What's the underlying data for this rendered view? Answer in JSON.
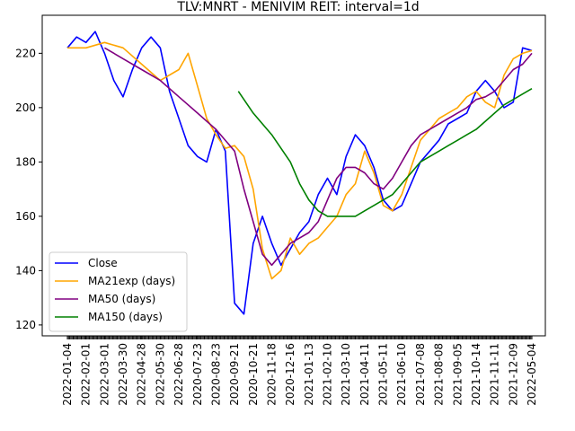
{
  "chart_data": {
    "type": "line",
    "title": "TLV:MNRT - MENIVIM REIT: interval=1d",
    "xlabel": "",
    "ylabel": "",
    "ylim": [
      116,
      234
    ],
    "y_ticks": [
      120,
      140,
      160,
      180,
      200,
      220
    ],
    "x_tick_labels": [
      "2022-01-04",
      "2022-02-01",
      "2022-03-01",
      "2022-03-30",
      "2022-04-28",
      "2022-05-30",
      "2022-06-28",
      "2020-07-23",
      "2020-08-23",
      "2020-09-21",
      "2020-10-21",
      "2020-11-18",
      "2020-12-16",
      "2021-01-13",
      "2021-02-10",
      "2021-03-10",
      "2021-04-11",
      "2021-05-11",
      "2021-06-10",
      "2021-07-08",
      "2021-08-08",
      "2021-09-05",
      "2021-10-14",
      "2021-11-11",
      "2021-12-09",
      "2022-05-04"
    ],
    "x_count": 26,
    "grid": false,
    "legend_position": "lower-left",
    "series": [
      {
        "name": "Close",
        "color": "#0000ff",
        "x": [
          0,
          0.5,
          1,
          1.5,
          2,
          2.5,
          3,
          3.5,
          4,
          4.5,
          5,
          5.5,
          6,
          6.5,
          7,
          7.5,
          8,
          8.5,
          9,
          9.5,
          10,
          10.5,
          11,
          11.5,
          12,
          12.5,
          13,
          13.5,
          14,
          14.5,
          15,
          15.5,
          16,
          16.5,
          17,
          17.5,
          18,
          18.5,
          19,
          19.5,
          20,
          20.5,
          21,
          21.5,
          22,
          22.5,
          23,
          23.5,
          24,
          24.5,
          25
        ],
        "values": [
          222,
          226,
          224,
          228,
          220,
          210,
          204,
          214,
          222,
          226,
          222,
          206,
          196,
          186,
          182,
          180,
          192,
          184,
          128,
          124,
          150,
          160,
          150,
          142,
          148,
          154,
          158,
          168,
          174,
          168,
          182,
          190,
          186,
          178,
          166,
          162,
          164,
          172,
          180,
          184,
          188,
          194,
          196,
          198,
          206,
          210,
          206,
          200,
          202,
          222,
          221
        ]
      },
      {
        "name": "MA21exp (days)",
        "color": "#ffa500",
        "x": [
          0,
          1,
          2,
          3,
          4,
          5,
          6,
          6.5,
          7,
          7.5,
          8,
          8.5,
          9,
          9.5,
          10,
          10.5,
          11,
          11.5,
          12,
          12.5,
          13,
          13.5,
          14,
          14.5,
          15,
          15.5,
          16,
          16.5,
          17,
          17.5,
          18,
          18.5,
          19,
          19.5,
          20,
          20.5,
          21,
          21.5,
          22,
          22.5,
          23,
          23.5,
          24,
          24.5,
          25
        ],
        "values": [
          222,
          222,
          224,
          222,
          216,
          210,
          214,
          220,
          208,
          196,
          190,
          185,
          186,
          182,
          170,
          148,
          137,
          140,
          152,
          146,
          150,
          152,
          156,
          160,
          168,
          172,
          184,
          176,
          164,
          162,
          168,
          178,
          188,
          192,
          196,
          198,
          200,
          204,
          206,
          202,
          200,
          212,
          218,
          220,
          221
        ]
      },
      {
        "name": "MA50 (days)",
        "color": "#800080",
        "x": [
          2,
          3,
          4,
          5,
          6,
          7,
          8,
          9,
          9.5,
          10,
          10.5,
          11,
          11.5,
          12,
          12.5,
          13,
          13.5,
          14,
          14.5,
          15,
          15.5,
          16,
          16.5,
          17,
          17.5,
          18,
          18.5,
          19,
          19.5,
          20,
          20.5,
          21,
          21.5,
          22,
          22.5,
          23,
          23.5,
          24,
          24.5,
          25
        ],
        "values": [
          222,
          218,
          214,
          210,
          204,
          198,
          192,
          184,
          170,
          158,
          146,
          142,
          146,
          150,
          152,
          154,
          158,
          166,
          174,
          178,
          178,
          176,
          172,
          170,
          174,
          180,
          186,
          190,
          192,
          194,
          196,
          198,
          200,
          203,
          204,
          206,
          210,
          214,
          216,
          220
        ]
      },
      {
        "name": "MA150 (days)",
        "color": "#008000",
        "x": [
          9.2,
          10,
          11,
          12,
          12.5,
          13,
          13.5,
          14,
          14.5,
          15,
          15.5,
          16,
          16.5,
          17,
          17.5,
          18,
          18.5,
          19,
          19.5,
          20,
          20.5,
          21,
          21.5,
          22,
          22.5,
          23,
          23.5,
          24,
          24.5,
          25
        ],
        "values": [
          206,
          198,
          190,
          180,
          172,
          166,
          162,
          160,
          160,
          160,
          160,
          162,
          164,
          166,
          168,
          172,
          176,
          180,
          182,
          184,
          186,
          188,
          190,
          192,
          195,
          198,
          201,
          203,
          205,
          207
        ]
      }
    ]
  }
}
